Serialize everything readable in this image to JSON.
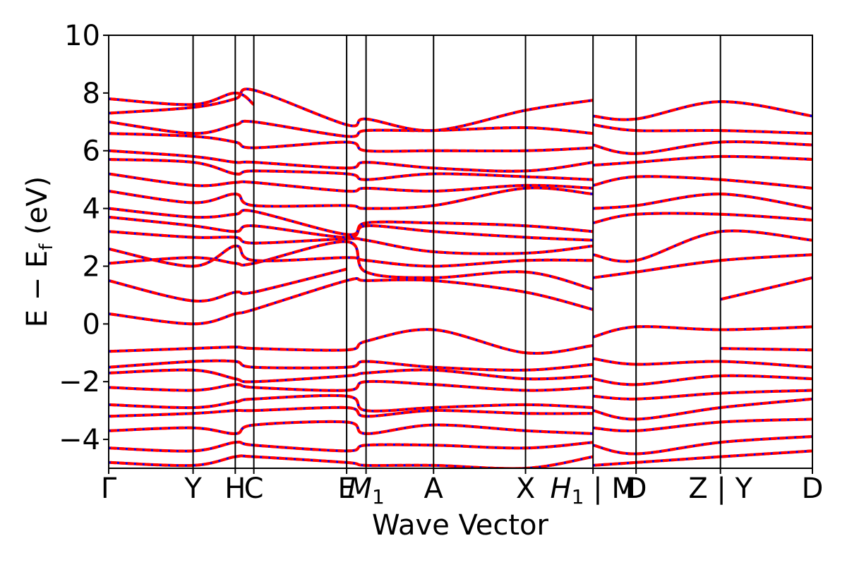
{
  "chart_data": {
    "type": "line",
    "title": "",
    "xlabel": "Wave Vector",
    "ylabel": "E − E_f (eV)",
    "ylabel_main": "E − E",
    "ylabel_sub": "f",
    "ylabel_unit": " (eV)",
    "ylim": [
      -5,
      10
    ],
    "yticks": [
      -4,
      -2,
      0,
      2,
      4,
      6,
      8,
      10
    ],
    "ytick_labels": [
      "−4",
      "−2",
      "0",
      "2",
      "4",
      "6",
      "8",
      "10"
    ],
    "xlim": [
      0,
      8.34
    ],
    "kpoints": [
      {
        "label": "Γ",
        "x": 0.0
      },
      {
        "label": "Y",
        "x": 1.0
      },
      {
        "label": "H",
        "x": 1.5
      },
      {
        "label": "C",
        "x": 1.72
      },
      {
        "label": "E",
        "x": 2.82
      },
      {
        "label": "M",
        "sub": "1",
        "x": 3.05
      },
      {
        "label": "A",
        "x": 3.85
      },
      {
        "label": "X",
        "x": 4.94
      },
      {
        "label": "H",
        "sub": "1",
        "suffix": " | M",
        "x": 5.74
      },
      {
        "label": "D",
        "x": 6.25
      },
      {
        "label": "Z | Y",
        "x": 7.25
      },
      {
        "label": "D",
        "x": 8.34
      }
    ],
    "grid": false,
    "colors": {
      "series_red": "#ff0000",
      "series_blue": "#0000ff",
      "vline": "#000000"
    },
    "series": [
      {
        "color": "red",
        "dash": "dashed-overlay-blue",
        "x": [
          0,
          1.0,
          1.5,
          1.72,
          2.82,
          3.05,
          3.85,
          4.94,
          5.74
        ],
        "y": [
          -0.95,
          -0.85,
          -0.8,
          -0.85,
          -0.9,
          -0.6,
          -0.2,
          -1.0,
          -0.75
        ]
      },
      {
        "color": "red",
        "dash": "dashed-overlay-blue",
        "x": [
          5.74,
          6.25,
          7.25,
          8.34
        ],
        "y": [
          -0.45,
          -0.1,
          -0.2,
          -0.1
        ]
      },
      {
        "color": "red",
        "dash": "dashed-overlay-blue",
        "x": [
          7.25,
          8.34
        ],
        "y": [
          -0.85,
          -0.9
        ]
      },
      {
        "color": "red",
        "dash": "dashed-overlay-blue",
        "x": [
          0,
          1.0,
          1.5,
          1.72,
          2.82,
          3.05,
          3.85,
          4.94,
          5.74
        ],
        "y": [
          0.35,
          0.0,
          0.35,
          0.5,
          1.5,
          1.5,
          1.5,
          1.1,
          0.5
        ]
      },
      {
        "color": "red",
        "dash": "dashed-overlay-blue",
        "x": [
          7.25,
          8.34
        ],
        "y": [
          0.85,
          1.6
        ]
      },
      {
        "color": "red",
        "dash": "dashed-overlay-blue",
        "x": [
          0,
          1.0,
          1.5,
          1.72,
          2.82
        ],
        "y": [
          1.5,
          0.8,
          1.1,
          1.1,
          1.9
        ]
      },
      {
        "color": "red",
        "dash": "dashed-overlay-blue",
        "x": [
          0,
          1.0,
          1.5,
          1.72,
          2.82,
          3.05,
          3.85,
          4.94,
          5.74
        ],
        "y": [
          2.1,
          2.3,
          2.1,
          2.1,
          2.85,
          1.8,
          1.6,
          1.8,
          1.2
        ]
      },
      {
        "color": "red",
        "dash": "dashed-overlay-blue",
        "x": [
          0,
          1.0,
          1.5,
          1.72,
          2.82,
          3.05,
          3.85,
          4.94,
          5.74
        ],
        "y": [
          2.6,
          2.0,
          2.7,
          2.2,
          2.3,
          2.2,
          2.0,
          2.2,
          2.2
        ]
      },
      {
        "color": "red",
        "dash": "dashed-overlay-blue",
        "x": [
          0,
          1.0,
          1.5,
          1.72,
          2.82,
          3.05,
          3.85,
          4.94,
          5.74
        ],
        "y": [
          3.2,
          3.0,
          3.0,
          2.8,
          2.95,
          2.9,
          2.5,
          2.45,
          2.7
        ]
      },
      {
        "color": "red",
        "dash": "dashed-overlay-blue",
        "x": [
          0,
          1.0,
          1.5,
          1.72,
          2.82,
          3.05,
          3.85,
          4.94,
          5.74
        ],
        "y": [
          3.7,
          3.4,
          3.2,
          3.4,
          3.0,
          3.4,
          3.2,
          3.0,
          2.9
        ]
      },
      {
        "color": "red",
        "dash": "dashed-overlay-blue",
        "x": [
          0,
          1.0,
          1.5,
          1.72,
          2.82,
          3.05,
          3.85,
          4.94,
          5.74
        ],
        "y": [
          4.0,
          3.7,
          3.8,
          3.9,
          3.1,
          3.5,
          3.5,
          3.4,
          3.2
        ]
      },
      {
        "color": "red",
        "dash": "dashed-overlay-blue",
        "x": [
          0,
          1.0,
          1.5,
          1.72,
          2.82,
          3.05,
          3.85,
          4.94,
          5.74
        ],
        "y": [
          4.6,
          4.2,
          4.5,
          4.1,
          4.1,
          4.0,
          4.1,
          4.7,
          4.5
        ]
      },
      {
        "color": "red",
        "dash": "dashed-overlay-blue",
        "x": [
          0,
          1.0,
          1.5,
          1.72,
          2.82,
          3.05,
          3.85,
          4.94,
          5.74
        ],
        "y": [
          5.2,
          4.8,
          4.9,
          4.9,
          4.6,
          4.7,
          4.6,
          4.8,
          4.7
        ]
      },
      {
        "color": "red",
        "dash": "dashed-overlay-blue",
        "x": [
          0,
          1.0,
          1.5,
          1.72,
          2.82,
          3.05,
          3.85,
          4.94,
          5.74
        ],
        "y": [
          5.7,
          5.6,
          5.2,
          5.3,
          5.2,
          5.0,
          5.2,
          5.1,
          5.0
        ]
      },
      {
        "color": "red",
        "dash": "dashed-overlay-blue",
        "x": [
          0,
          1.0,
          1.5,
          1.72,
          2.82,
          3.05,
          3.85,
          4.94,
          5.74
        ],
        "y": [
          6.0,
          5.8,
          5.6,
          5.6,
          5.4,
          5.6,
          5.4,
          5.3,
          5.6
        ]
      },
      {
        "color": "red",
        "dash": "dashed-overlay-blue",
        "x": [
          0,
          1.0,
          1.5,
          1.72,
          2.82,
          3.05,
          3.85,
          4.94,
          5.74
        ],
        "y": [
          6.6,
          6.5,
          6.3,
          6.1,
          6.3,
          6.0,
          6.0,
          6.0,
          6.1
        ]
      },
      {
        "color": "red",
        "dash": "dashed-overlay-blue",
        "x": [
          0,
          1.0,
          1.5,
          1.72,
          2.82,
          3.05,
          3.85,
          4.94,
          5.74
        ],
        "y": [
          7.0,
          6.6,
          6.9,
          7.0,
          6.5,
          6.7,
          6.7,
          6.8,
          6.6
        ]
      },
      {
        "color": "red",
        "dash": "dashed-overlay-blue",
        "x": [
          0,
          1.0,
          1.5,
          1.72,
          2.82,
          3.05,
          3.85,
          4.94,
          5.74
        ],
        "y": [
          7.3,
          7.5,
          7.8,
          8.1,
          6.9,
          7.1,
          6.7,
          7.4,
          7.75
        ]
      },
      {
        "color": "red",
        "dash": "dashed-overlay-blue",
        "x": [
          0,
          1.0,
          1.5,
          1.72
        ],
        "y": [
          7.8,
          7.6,
          8.0,
          7.6
        ]
      },
      {
        "color": "red",
        "dash": "dashed-overlay-blue",
        "x": [
          0,
          1.0,
          1.5,
          1.72,
          2.82,
          3.05,
          3.85,
          4.94,
          5.74
        ],
        "y": [
          -1.5,
          -1.3,
          -1.3,
          -1.5,
          -1.5,
          -1.3,
          -1.5,
          -1.6,
          -1.4
        ]
      },
      {
        "color": "red",
        "dash": "dashed-overlay-blue",
        "x": [
          0,
          1.0,
          1.5,
          1.72,
          2.82,
          3.05,
          3.85,
          4.94,
          5.74
        ],
        "y": [
          -1.7,
          -1.6,
          -1.9,
          -2.0,
          -1.8,
          -1.7,
          -1.6,
          -1.9,
          -1.8
        ]
      },
      {
        "color": "red",
        "dash": "dashed-overlay-blue",
        "x": [
          0,
          1.0,
          1.5,
          1.72,
          2.82,
          3.05,
          3.85,
          4.94,
          5.74
        ],
        "y": [
          -2.2,
          -2.3,
          -2.1,
          -2.2,
          -2.3,
          -2.0,
          -2.1,
          -2.3,
          -2.2
        ]
      },
      {
        "color": "red",
        "dash": "dashed-overlay-blue",
        "x": [
          0,
          1.0,
          1.5,
          1.72,
          2.82,
          3.05,
          3.85,
          4.94,
          5.74
        ],
        "y": [
          -2.8,
          -2.9,
          -2.7,
          -2.6,
          -2.5,
          -3.0,
          -2.9,
          -2.8,
          -2.9
        ]
      },
      {
        "color": "red",
        "dash": "dashed-overlay-blue",
        "x": [
          0,
          1.0,
          1.5,
          1.72,
          2.82,
          3.05,
          3.85,
          4.94,
          5.74
        ],
        "y": [
          -3.2,
          -3.1,
          -3.0,
          -3.0,
          -2.9,
          -3.2,
          -3.0,
          -3.1,
          -3.1
        ]
      },
      {
        "color": "red",
        "dash": "dashed-overlay-blue",
        "x": [
          0,
          1.0,
          1.5,
          1.72,
          2.82,
          3.05,
          3.85,
          4.94,
          5.74
        ],
        "y": [
          -3.7,
          -3.6,
          -3.8,
          -3.5,
          -3.4,
          -3.8,
          -3.5,
          -3.7,
          -3.8
        ]
      },
      {
        "color": "red",
        "dash": "dashed-overlay-blue",
        "x": [
          0,
          1.0,
          1.5,
          1.72,
          2.82,
          3.05,
          3.85,
          4.94,
          5.74
        ],
        "y": [
          -4.3,
          -4.4,
          -4.1,
          -4.2,
          -4.4,
          -4.2,
          -4.2,
          -4.3,
          -4.1
        ]
      },
      {
        "color": "red",
        "dash": "dashed-overlay-blue",
        "x": [
          0,
          1.0,
          1.5,
          1.72,
          2.82,
          3.05,
          3.85,
          4.94,
          5.74
        ],
        "y": [
          -4.8,
          -4.9,
          -4.6,
          -4.6,
          -4.8,
          -4.9,
          -4.9,
          -5.0,
          -4.6
        ]
      },
      {
        "color": "red",
        "dash": "dashed-overlay-blue",
        "x": [
          5.74,
          6.25,
          7.25,
          8.34
        ],
        "y": [
          1.6,
          1.8,
          2.2,
          2.4
        ]
      },
      {
        "color": "red",
        "dash": "dashed-overlay-blue",
        "x": [
          5.74,
          6.25,
          7.25,
          8.34
        ],
        "y": [
          2.4,
          2.2,
          3.2,
          2.9
        ]
      },
      {
        "color": "red",
        "dash": "dashed-overlay-blue",
        "x": [
          5.74,
          6.25,
          7.25,
          8.34
        ],
        "y": [
          3.5,
          3.8,
          3.8,
          3.6
        ]
      },
      {
        "color": "red",
        "dash": "dashed-overlay-blue",
        "x": [
          5.74,
          6.25,
          7.25,
          8.34
        ],
        "y": [
          4.0,
          4.1,
          4.5,
          4.0
        ]
      },
      {
        "color": "red",
        "dash": "dashed-overlay-blue",
        "x": [
          5.74,
          6.25,
          7.25,
          8.34
        ],
        "y": [
          4.8,
          5.1,
          5.0,
          4.7
        ]
      },
      {
        "color": "red",
        "dash": "dashed-overlay-blue",
        "x": [
          5.74,
          6.25,
          7.25,
          8.34
        ],
        "y": [
          5.5,
          5.6,
          5.8,
          5.7
        ]
      },
      {
        "color": "red",
        "dash": "dashed-overlay-blue",
        "x": [
          5.74,
          6.25,
          7.25,
          8.34
        ],
        "y": [
          6.2,
          5.9,
          6.3,
          6.2
        ]
      },
      {
        "color": "red",
        "dash": "dashed-overlay-blue",
        "x": [
          5.74,
          6.25,
          7.25,
          8.34
        ],
        "y": [
          6.9,
          6.7,
          6.7,
          6.6
        ]
      },
      {
        "color": "red",
        "dash": "dashed-overlay-blue",
        "x": [
          5.74,
          6.25,
          7.25,
          8.34
        ],
        "y": [
          7.2,
          7.1,
          7.7,
          7.2
        ]
      },
      {
        "color": "red",
        "dash": "dashed-overlay-blue",
        "x": [
          5.74,
          6.25,
          7.25,
          8.34
        ],
        "y": [
          -1.2,
          -1.4,
          -1.3,
          -1.5
        ]
      },
      {
        "color": "red",
        "dash": "dashed-overlay-blue",
        "x": [
          5.74,
          6.25,
          7.25,
          8.34
        ],
        "y": [
          -1.9,
          -2.1,
          -1.8,
          -1.9
        ]
      },
      {
        "color": "red",
        "dash": "dashed-overlay-blue",
        "x": [
          5.74,
          6.25,
          7.25,
          8.34
        ],
        "y": [
          -2.5,
          -2.6,
          -2.4,
          -2.3
        ]
      },
      {
        "color": "red",
        "dash": "dashed-overlay-blue",
        "x": [
          5.74,
          6.25,
          7.25,
          8.34
        ],
        "y": [
          -3.0,
          -3.3,
          -2.9,
          -2.6
        ]
      },
      {
        "color": "red",
        "dash": "dashed-overlay-blue",
        "x": [
          5.74,
          6.25,
          7.25,
          8.34
        ],
        "y": [
          -3.6,
          -3.7,
          -3.4,
          -3.3
        ]
      },
      {
        "color": "red",
        "dash": "dashed-overlay-blue",
        "x": [
          5.74,
          6.25,
          7.25,
          8.34
        ],
        "y": [
          -4.2,
          -4.5,
          -4.1,
          -3.9
        ]
      },
      {
        "color": "red",
        "dash": "dashed-overlay-blue",
        "x": [
          5.74,
          6.25,
          7.25,
          8.34
        ],
        "y": [
          -4.9,
          -4.8,
          -4.6,
          -4.4
        ]
      }
    ]
  }
}
